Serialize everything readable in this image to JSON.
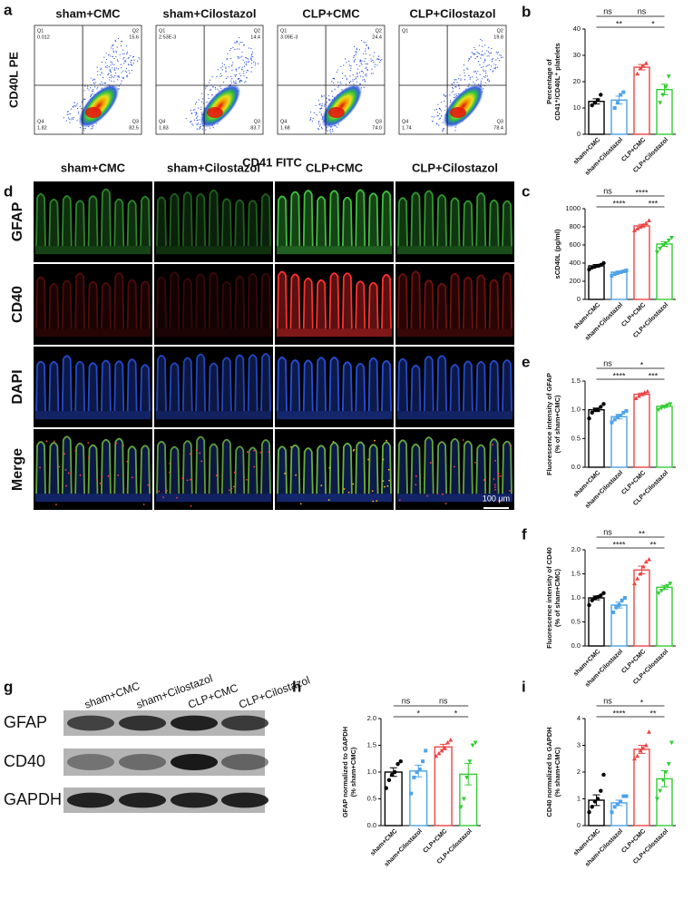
{
  "flow_cytometry": {
    "label": "a",
    "ylabel": "CD40L PE",
    "xlabel": "CD41 FITC",
    "plots": [
      {
        "title": "sham+CMC",
        "quadrants": [
          {
            "name": "Q1",
            "value": 0.012
          },
          {
            "name": "Q2",
            "value": 15.6
          },
          {
            "name": "Q3",
            "value": 82.5
          },
          {
            "name": "Q4",
            "value": 1.82
          }
        ]
      },
      {
        "title": "sham+Cilostazol",
        "quadrants": [
          {
            "name": "Q1",
            "value": 0.00253,
            "label": "2.53E-3"
          },
          {
            "name": "Q2",
            "value": 14.4
          },
          {
            "name": "Q3",
            "value": 83.7
          },
          {
            "name": "Q4",
            "value": 1.83
          }
        ]
      },
      {
        "title": "CLP+CMC",
        "quadrants": [
          {
            "name": "Q1",
            "value": 0.00309,
            "label": "3.09E-3"
          },
          {
            "name": "Q2",
            "value": 24.4
          },
          {
            "name": "Q3",
            "value": 74,
            "label": "74.0"
          },
          {
            "name": "Q4",
            "value": 1.68
          }
        ]
      },
      {
        "title": "CLP+Cilostazol",
        "quadrants": [
          {
            "name": "Q1"
          },
          {
            "name": "Q2",
            "value": 19.8
          },
          {
            "name": "Q3",
            "value": 78.4
          },
          {
            "name": "Q4",
            "value": 1.74
          }
        ]
      }
    ]
  },
  "microscopy": {
    "label": "d",
    "columns": [
      "sham+CMC",
      "sham+Cilostazol",
      "CLP+CMC",
      "CLP+Cilostazol"
    ],
    "rows": [
      {
        "label": "GFAP",
        "color": "#2eaa2e"
      },
      {
        "label": "CD40",
        "color": "#d42020"
      },
      {
        "label": "DAPI",
        "color": "#2a4fd0"
      },
      {
        "label": "Merge",
        "color": "#111111"
      }
    ],
    "scale_bar": "100 μm"
  },
  "western_blot": {
    "label": "g",
    "columns": [
      "sham+CMC",
      "sham+Cilostazol",
      "CLP+CMC",
      "CLP+Cilostazol"
    ],
    "rows": [
      "GFAP",
      "CD40",
      "GAPDH"
    ]
  },
  "chart_data": [
    {
      "type": "bar",
      "label": "b",
      "ylabel": [
        "Percentage of",
        "CD41⁺/CD40L⁺ platelets"
      ],
      "categories": [
        "sham+CMC",
        "sham+Cilostazol",
        "CLP+CMC",
        "CLP+Cilostazol"
      ],
      "colors": [
        "#000000",
        "#4da3e8",
        "#ee4444",
        "#33cc33"
      ],
      "values": [
        12.5,
        13,
        25.5,
        17
      ],
      "errors": [
        1,
        1.5,
        1,
        2
      ],
      "points": [
        [
          11,
          12,
          13,
          15
        ],
        [
          10,
          12,
          15,
          16
        ],
        [
          23,
          25,
          26,
          27
        ],
        [
          12,
          15,
          18,
          22
        ]
      ],
      "ylim": [
        0,
        40
      ],
      "yticks": [
        0,
        10,
        20,
        30,
        40
      ],
      "annotations": [
        "ns",
        "ns",
        "**",
        "*"
      ]
    },
    {
      "type": "bar",
      "label": "c",
      "ylabel": [
        "sCD40L (pg/ml)"
      ],
      "categories": [
        "sham+CMC",
        "sham+Cilostazol",
        "CLP+CMC",
        "CLP+Cilostazol"
      ],
      "colors": [
        "#000000",
        "#4da3e8",
        "#ee4444",
        "#33cc33"
      ],
      "values": [
        370,
        300,
        810,
        610
      ],
      "errors": [
        15,
        12,
        18,
        25
      ],
      "points": [
        [
          330,
          350,
          360,
          370,
          380,
          400
        ],
        [
          260,
          280,
          290,
          300,
          310,
          320
        ],
        [
          760,
          780,
          800,
          820,
          840,
          870
        ],
        [
          520,
          560,
          600,
          620,
          650,
          680
        ]
      ],
      "ylim": [
        0,
        1000
      ],
      "yticks": [
        0,
        200,
        400,
        600,
        800,
        1000
      ],
      "annotations": [
        "ns",
        "****",
        "****",
        "***"
      ]
    },
    {
      "type": "bar",
      "label": "e",
      "ylabel": [
        "Fluorescence intensity of GFAP",
        "(% of sham+CMC)"
      ],
      "categories": [
        "sham+CMC",
        "sham+Cilostazol",
        "CLP+CMC",
        "CLP+Cilostazol"
      ],
      "colors": [
        "#000000",
        "#4da3e8",
        "#ee4444",
        "#33cc33"
      ],
      "values": [
        1.0,
        0.88,
        1.27,
        1.06
      ],
      "errors": [
        0.03,
        0.04,
        0.02,
        0.02
      ],
      "points": [
        [
          0.85,
          0.95,
          1.0,
          1.0,
          1.05,
          1.1
        ],
        [
          0.78,
          0.83,
          0.88,
          0.9,
          0.95,
          0.98
        ],
        [
          1.2,
          1.24,
          1.27,
          1.3,
          1.32
        ],
        [
          1.0,
          1.03,
          1.05,
          1.08,
          1.1
        ]
      ],
      "ylim": [
        0,
        1.5
      ],
      "yticks": [
        {
          "value": 0,
          "label": "0.0"
        },
        0.5,
        {
          "value": 1,
          "label": "1.0"
        },
        1.5
      ],
      "annotations": [
        "ns",
        "*",
        "****",
        "***"
      ]
    },
    {
      "type": "bar",
      "label": "f",
      "ylabel": [
        "Fluorescence intensity of CD40",
        "(% of sham+CMC)"
      ],
      "categories": [
        "sham+CMC",
        "sham+Cilostazol",
        "CLP+CMC",
        "CLP+Cilostazol"
      ],
      "colors": [
        "#000000",
        "#4da3e8",
        "#ee4444",
        "#33cc33"
      ],
      "values": [
        1.0,
        0.85,
        1.58,
        1.22
      ],
      "errors": [
        0.04,
        0.06,
        0.08,
        0.04
      ],
      "points": [
        [
          0.85,
          0.95,
          1.0,
          1.02,
          1.05,
          1.1
        ],
        [
          0.7,
          0.8,
          0.85,
          0.95,
          1.0
        ],
        [
          1.3,
          1.4,
          1.5,
          1.65,
          1.75,
          1.8
        ],
        [
          1.1,
          1.15,
          1.2,
          1.25,
          1.3
        ]
      ],
      "ylim": [
        0,
        2
      ],
      "yticks": [
        {
          "value": 0,
          "label": "0.0"
        },
        0.5,
        {
          "value": 1,
          "label": "1.0"
        },
        1.5,
        {
          "value": 2,
          "label": "2.0"
        }
      ],
      "annotations": [
        "ns",
        "**",
        "****",
        "**"
      ]
    },
    {
      "type": "bar",
      "label": "h",
      "ylabel": [
        "GFAP normalized to GAPDH",
        "(% sham+CMC)"
      ],
      "categories": [
        "sham+CMC",
        "sham+Cilostazol",
        "CLP+CMC",
        "CLP+Cilostazol"
      ],
      "colors": [
        "#000000",
        "#4da3e8",
        "#ee4444",
        "#33cc33"
      ],
      "values": [
        1.0,
        1.02,
        1.47,
        0.96
      ],
      "errors": [
        0.08,
        0.11,
        0.05,
        0.2
      ],
      "points": [
        [
          0.7,
          0.85,
          0.95,
          1.0,
          1.15,
          1.2
        ],
        [
          0.6,
          0.9,
          1.0,
          1.05,
          1.2,
          1.4
        ],
        [
          1.3,
          1.35,
          1.4,
          1.45,
          1.55,
          1.6
        ],
        [
          0.35,
          0.5,
          0.9,
          1.2,
          1.5,
          1.55
        ]
      ],
      "ylim": [
        0,
        2
      ],
      "yticks": [
        {
          "value": 0,
          "label": "0.0"
        },
        0.5,
        {
          "value": 1,
          "label": "1.0"
        },
        1.5,
        {
          "value": 2,
          "label": "2.0"
        }
      ],
      "annotations": [
        "ns",
        "ns",
        "*",
        "*"
      ]
    },
    {
      "type": "bar",
      "label": "i",
      "ylabel": [
        "CD40 normalized to GAPDH",
        "(% sham+CMC)"
      ],
      "categories": [
        "sham+CMC",
        "sham+Cilostazol",
        "CLP+CMC",
        "CLP+Cilostazol"
      ],
      "colors": [
        "#000000",
        "#4da3e8",
        "#ee4444",
        "#33cc33"
      ],
      "values": [
        0.95,
        0.85,
        2.85,
        1.75
      ],
      "errors": [
        0.2,
        0.1,
        0.15,
        0.3
      ],
      "points": [
        [
          0.5,
          0.7,
          0.9,
          1.0,
          1.3,
          1.9
        ],
        [
          0.5,
          0.7,
          0.8,
          0.9,
          1.1,
          1.1
        ],
        [
          2.5,
          2.6,
          2.8,
          2.9,
          3.0,
          3.5
        ],
        [
          1.0,
          1.3,
          1.7,
          2.0,
          2.3,
          3.1
        ]
      ],
      "ylim": [
        0,
        4
      ],
      "yticks": [
        0,
        1,
        2,
        3,
        4
      ],
      "annotations": [
        "ns",
        "*",
        "****",
        "**"
      ]
    }
  ]
}
